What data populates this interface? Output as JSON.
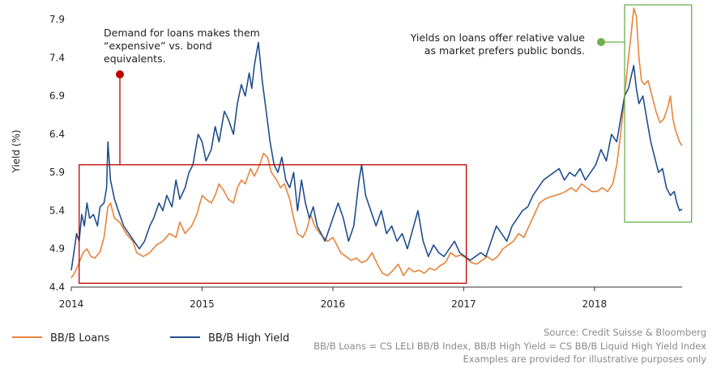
{
  "chart_data": {
    "type": "line",
    "ylabel": "Yield (%)",
    "xlabel": "",
    "title": "",
    "x_ticks": [
      "2014",
      "2015",
      "2016",
      "2017",
      "2018"
    ],
    "y_ticks": [
      "4.4",
      "4.9",
      "5.4",
      "5.9",
      "6.4",
      "6.9",
      "7.4",
      "7.9"
    ],
    "xlim": [
      2014.0,
      2018.67
    ],
    "ylim": [
      4.4,
      8.05
    ],
    "grid": false,
    "legend_position": "bottom-left",
    "series": [
      {
        "name": "BB/B Loans",
        "color": "#E8833A",
        "points": [
          [
            2014.0,
            4.52
          ],
          [
            2014.03,
            4.6
          ],
          [
            2014.06,
            4.72
          ],
          [
            2014.09,
            4.85
          ],
          [
            2014.12,
            4.9
          ],
          [
            2014.15,
            4.8
          ],
          [
            2014.18,
            4.78
          ],
          [
            2014.22,
            4.86
          ],
          [
            2014.25,
            5.05
          ],
          [
            2014.28,
            5.45
          ],
          [
            2014.3,
            5.5
          ],
          [
            2014.33,
            5.3
          ],
          [
            2014.37,
            5.25
          ],
          [
            2014.42,
            5.1
          ],
          [
            2014.47,
            5.0
          ],
          [
            2014.5,
            4.85
          ],
          [
            2014.55,
            4.8
          ],
          [
            2014.6,
            4.85
          ],
          [
            2014.65,
            4.95
          ],
          [
            2014.7,
            5.0
          ],
          [
            2014.75,
            5.1
          ],
          [
            2014.8,
            5.05
          ],
          [
            2014.83,
            5.25
          ],
          [
            2014.87,
            5.1
          ],
          [
            2014.92,
            5.2
          ],
          [
            2014.96,
            5.35
          ],
          [
            2015.0,
            5.6
          ],
          [
            2015.03,
            5.55
          ],
          [
            2015.07,
            5.5
          ],
          [
            2015.1,
            5.6
          ],
          [
            2015.13,
            5.75
          ],
          [
            2015.17,
            5.65
          ],
          [
            2015.2,
            5.55
          ],
          [
            2015.24,
            5.5
          ],
          [
            2015.27,
            5.7
          ],
          [
            2015.3,
            5.8
          ],
          [
            2015.33,
            5.75
          ],
          [
            2015.37,
            5.95
          ],
          [
            2015.4,
            5.85
          ],
          [
            2015.44,
            6.0
          ],
          [
            2015.47,
            6.15
          ],
          [
            2015.5,
            6.1
          ],
          [
            2015.53,
            5.9
          ],
          [
            2015.57,
            5.8
          ],
          [
            2015.6,
            5.7
          ],
          [
            2015.63,
            5.75
          ],
          [
            2015.67,
            5.55
          ],
          [
            2015.7,
            5.3
          ],
          [
            2015.73,
            5.1
          ],
          [
            2015.77,
            5.05
          ],
          [
            2015.8,
            5.15
          ],
          [
            2015.83,
            5.35
          ],
          [
            2015.86,
            5.2
          ],
          [
            2015.9,
            5.1
          ],
          [
            2015.93,
            5.05
          ],
          [
            2015.96,
            5.0
          ],
          [
            2016.0,
            5.05
          ],
          [
            2016.03,
            4.95
          ],
          [
            2016.06,
            4.85
          ],
          [
            2016.1,
            4.8
          ],
          [
            2016.14,
            4.75
          ],
          [
            2016.18,
            4.78
          ],
          [
            2016.22,
            4.72
          ],
          [
            2016.26,
            4.75
          ],
          [
            2016.3,
            4.85
          ],
          [
            2016.34,
            4.7
          ],
          [
            2016.38,
            4.58
          ],
          [
            2016.42,
            4.55
          ],
          [
            2016.46,
            4.62
          ],
          [
            2016.5,
            4.7
          ],
          [
            2016.54,
            4.55
          ],
          [
            2016.58,
            4.65
          ],
          [
            2016.62,
            4.6
          ],
          [
            2016.66,
            4.62
          ],
          [
            2016.7,
            4.58
          ],
          [
            2016.74,
            4.65
          ],
          [
            2016.78,
            4.62
          ],
          [
            2016.82,
            4.68
          ],
          [
            2016.86,
            4.72
          ],
          [
            2016.9,
            4.85
          ],
          [
            2016.94,
            4.8
          ],
          [
            2016.98,
            4.82
          ],
          [
            2017.02,
            4.78
          ],
          [
            2017.06,
            4.72
          ],
          [
            2017.1,
            4.7
          ],
          [
            2017.14,
            4.75
          ],
          [
            2017.18,
            4.8
          ],
          [
            2017.22,
            4.75
          ],
          [
            2017.26,
            4.8
          ],
          [
            2017.3,
            4.9
          ],
          [
            2017.34,
            4.95
          ],
          [
            2017.38,
            5.0
          ],
          [
            2017.42,
            5.1
          ],
          [
            2017.46,
            5.05
          ],
          [
            2017.5,
            5.2
          ],
          [
            2017.54,
            5.35
          ],
          [
            2017.58,
            5.5
          ],
          [
            2017.62,
            5.55
          ],
          [
            2017.66,
            5.58
          ],
          [
            2017.7,
            5.6
          ],
          [
            2017.74,
            5.62
          ],
          [
            2017.78,
            5.65
          ],
          [
            2017.82,
            5.7
          ],
          [
            2017.86,
            5.65
          ],
          [
            2017.9,
            5.75
          ],
          [
            2017.94,
            5.7
          ],
          [
            2017.98,
            5.65
          ],
          [
            2018.02,
            5.65
          ],
          [
            2018.06,
            5.7
          ],
          [
            2018.1,
            5.65
          ],
          [
            2018.14,
            5.75
          ],
          [
            2018.17,
            6.0
          ],
          [
            2018.2,
            6.4
          ],
          [
            2018.23,
            6.9
          ],
          [
            2018.26,
            7.4
          ],
          [
            2018.28,
            7.7
          ],
          [
            2018.3,
            8.05
          ],
          [
            2018.32,
            7.95
          ],
          [
            2018.34,
            7.4
          ],
          [
            2018.36,
            7.1
          ],
          [
            2018.38,
            7.05
          ],
          [
            2018.41,
            7.1
          ],
          [
            2018.44,
            6.9
          ],
          [
            2018.47,
            6.7
          ],
          [
            2018.5,
            6.55
          ],
          [
            2018.53,
            6.6
          ],
          [
            2018.56,
            6.75
          ],
          [
            2018.58,
            6.9
          ],
          [
            2018.6,
            6.6
          ],
          [
            2018.62,
            6.45
          ],
          [
            2018.65,
            6.3
          ],
          [
            2018.67,
            6.25
          ]
        ]
      },
      {
        "name": "BB/B High Yield",
        "color": "#1F4E8C",
        "points": [
          [
            2014.0,
            4.62
          ],
          [
            2014.02,
            4.85
          ],
          [
            2014.04,
            5.1
          ],
          [
            2014.06,
            5.0
          ],
          [
            2014.08,
            5.35
          ],
          [
            2014.1,
            5.2
          ],
          [
            2014.12,
            5.5
          ],
          [
            2014.14,
            5.3
          ],
          [
            2014.17,
            5.35
          ],
          [
            2014.2,
            5.2
          ],
          [
            2014.22,
            5.45
          ],
          [
            2014.25,
            5.5
          ],
          [
            2014.27,
            5.7
          ],
          [
            2014.28,
            6.3
          ],
          [
            2014.3,
            5.8
          ],
          [
            2014.33,
            5.55
          ],
          [
            2014.36,
            5.4
          ],
          [
            2014.4,
            5.2
          ],
          [
            2014.44,
            5.1
          ],
          [
            2014.48,
            5.0
          ],
          [
            2014.52,
            4.9
          ],
          [
            2014.56,
            5.0
          ],
          [
            2014.6,
            5.2
          ],
          [
            2014.63,
            5.3
          ],
          [
            2014.67,
            5.5
          ],
          [
            2014.7,
            5.4
          ],
          [
            2014.73,
            5.6
          ],
          [
            2014.77,
            5.45
          ],
          [
            2014.8,
            5.8
          ],
          [
            2014.83,
            5.55
          ],
          [
            2014.87,
            5.7
          ],
          [
            2014.9,
            5.9
          ],
          [
            2014.93,
            6.0
          ],
          [
            2014.97,
            6.4
          ],
          [
            2015.0,
            6.3
          ],
          [
            2015.03,
            6.05
          ],
          [
            2015.07,
            6.2
          ],
          [
            2015.1,
            6.5
          ],
          [
            2015.13,
            6.3
          ],
          [
            2015.17,
            6.7
          ],
          [
            2015.2,
            6.6
          ],
          [
            2015.24,
            6.4
          ],
          [
            2015.27,
            6.8
          ],
          [
            2015.3,
            7.05
          ],
          [
            2015.33,
            6.9
          ],
          [
            2015.36,
            7.2
          ],
          [
            2015.38,
            7.0
          ],
          [
            2015.4,
            7.3
          ],
          [
            2015.43,
            7.6
          ],
          [
            2015.46,
            7.1
          ],
          [
            2015.49,
            6.7
          ],
          [
            2015.52,
            6.3
          ],
          [
            2015.55,
            6.0
          ],
          [
            2015.58,
            5.9
          ],
          [
            2015.61,
            6.1
          ],
          [
            2015.64,
            5.8
          ],
          [
            2015.67,
            5.7
          ],
          [
            2015.7,
            5.9
          ],
          [
            2015.73,
            5.4
          ],
          [
            2015.76,
            5.8
          ],
          [
            2015.79,
            5.5
          ],
          [
            2015.82,
            5.3
          ],
          [
            2015.85,
            5.45
          ],
          [
            2015.88,
            5.2
          ],
          [
            2015.91,
            5.1
          ],
          [
            2015.94,
            5.0
          ],
          [
            2016.0,
            5.3
          ],
          [
            2016.04,
            5.5
          ],
          [
            2016.08,
            5.3
          ],
          [
            2016.12,
            5.0
          ],
          [
            2016.16,
            5.2
          ],
          [
            2016.2,
            5.8
          ],
          [
            2016.22,
            6.0
          ],
          [
            2016.25,
            5.6
          ],
          [
            2016.29,
            5.4
          ],
          [
            2016.33,
            5.2
          ],
          [
            2016.37,
            5.4
          ],
          [
            2016.41,
            5.1
          ],
          [
            2016.45,
            5.2
          ],
          [
            2016.49,
            5.0
          ],
          [
            2016.53,
            5.1
          ],
          [
            2016.57,
            4.9
          ],
          [
            2016.61,
            5.15
          ],
          [
            2016.65,
            5.4
          ],
          [
            2016.69,
            5.0
          ],
          [
            2016.73,
            4.8
          ],
          [
            2016.77,
            4.95
          ],
          [
            2016.81,
            4.85
          ],
          [
            2016.85,
            4.8
          ],
          [
            2016.89,
            4.9
          ],
          [
            2016.93,
            5.0
          ],
          [
            2016.97,
            4.85
          ],
          [
            2017.01,
            4.8
          ],
          [
            2017.05,
            4.75
          ],
          [
            2017.09,
            4.8
          ],
          [
            2017.13,
            4.85
          ],
          [
            2017.17,
            4.8
          ],
          [
            2017.21,
            5.0
          ],
          [
            2017.25,
            5.2
          ],
          [
            2017.29,
            5.1
          ],
          [
            2017.33,
            5.0
          ],
          [
            2017.37,
            5.2
          ],
          [
            2017.41,
            5.3
          ],
          [
            2017.45,
            5.4
          ],
          [
            2017.49,
            5.45
          ],
          [
            2017.53,
            5.6
          ],
          [
            2017.57,
            5.7
          ],
          [
            2017.61,
            5.8
          ],
          [
            2017.65,
            5.85
          ],
          [
            2017.69,
            5.9
          ],
          [
            2017.73,
            5.95
          ],
          [
            2017.77,
            5.8
          ],
          [
            2017.81,
            5.9
          ],
          [
            2017.85,
            5.85
          ],
          [
            2017.89,
            5.95
          ],
          [
            2017.93,
            5.8
          ],
          [
            2017.97,
            5.9
          ],
          [
            2018.01,
            6.0
          ],
          [
            2018.05,
            6.2
          ],
          [
            2018.09,
            6.05
          ],
          [
            2018.13,
            6.4
          ],
          [
            2018.17,
            6.3
          ],
          [
            2018.2,
            6.6
          ],
          [
            2018.23,
            6.9
          ],
          [
            2018.26,
            7.0
          ],
          [
            2018.28,
            7.15
          ],
          [
            2018.3,
            7.3
          ],
          [
            2018.32,
            7.0
          ],
          [
            2018.34,
            6.8
          ],
          [
            2018.37,
            6.9
          ],
          [
            2018.4,
            6.6
          ],
          [
            2018.43,
            6.3
          ],
          [
            2018.46,
            6.1
          ],
          [
            2018.49,
            5.9
          ],
          [
            2018.52,
            5.95
          ],
          [
            2018.55,
            5.7
          ],
          [
            2018.58,
            5.6
          ],
          [
            2018.61,
            5.65
          ],
          [
            2018.63,
            5.5
          ],
          [
            2018.65,
            5.4
          ],
          [
            2018.67,
            5.42
          ]
        ]
      }
    ],
    "annotations": [
      {
        "lines": [
          "Demand for loans makes them",
          "“expensive” vs. bond",
          "equivalents."
        ],
        "color": "#C00000",
        "box": {
          "x": [
            2014.06,
            2017.02
          ],
          "y": [
            4.45,
            6.0
          ]
        }
      },
      {
        "lines": [
          "Yields on loans offer relative value",
          "as market prefers public bonds."
        ],
        "color": "#6AB04C",
        "box": {
          "x": [
            2018.28,
            2018.73
          ],
          "y": [
            5.25,
            8.1
          ]
        }
      }
    ]
  },
  "legend": {
    "items": [
      {
        "label": "BB/B Loans",
        "color": "#E8833A"
      },
      {
        "label": "BB/B High Yield",
        "color": "#1F4E8C"
      }
    ]
  },
  "footer": {
    "source": "Source:  Credit Suisse & Bloomberg",
    "line2": "BB/B Loans = CS LELI BB/B Index, BB/B High Yield = CS BB/B Liquid High Yield Index",
    "line3": "Examples are provided for illustrative purposes only"
  }
}
